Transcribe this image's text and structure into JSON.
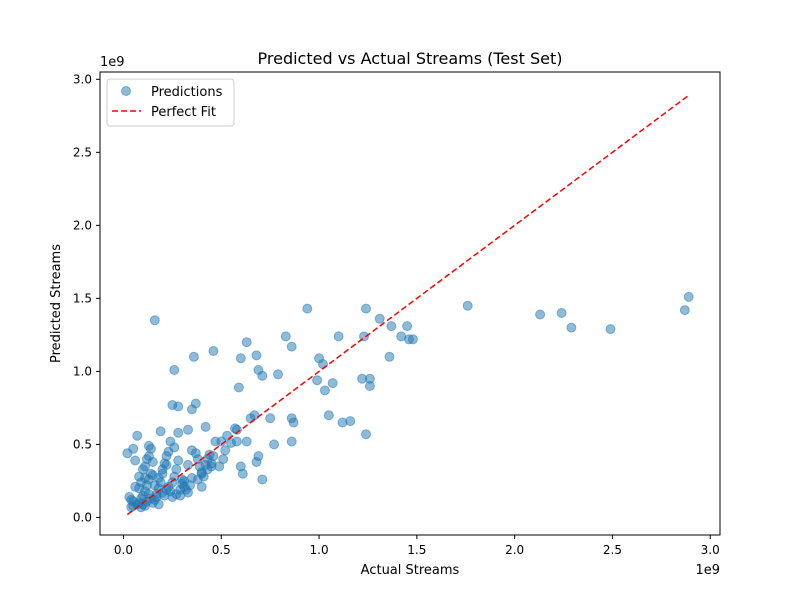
{
  "chart_data": {
    "type": "scatter",
    "title": "Predicted vs Actual Streams (Test Set)",
    "xlabel": "Actual Streams",
    "ylabel": "Predicted Streams",
    "x_offset_label": "1e9",
    "y_offset_label": "1e9",
    "xlim": [
      -0.12,
      3.05
    ],
    "ylim": [
      -0.12,
      3.05
    ],
    "xticks": [
      0.0,
      0.5,
      1.0,
      1.5,
      2.0,
      2.5,
      3.0
    ],
    "xtick_labels": [
      "0.0",
      "0.5",
      "1.0",
      "1.5",
      "2.0",
      "2.5",
      "3.0"
    ],
    "yticks": [
      0.0,
      0.5,
      1.0,
      1.5,
      2.0,
      2.5,
      3.0
    ],
    "ytick_labels": [
      "0.0",
      "0.5",
      "1.0",
      "1.5",
      "2.0",
      "2.5",
      "3.0"
    ],
    "grid": false,
    "legend_position": "top-left",
    "series": [
      {
        "name": "Predictions",
        "kind": "scatter",
        "color": "#1f77b4",
        "points": [
          [
            0.02,
            0.44
          ],
          [
            0.03,
            0.14
          ],
          [
            0.05,
            0.47
          ],
          [
            0.06,
            0.39
          ],
          [
            0.07,
            0.56
          ],
          [
            0.06,
            0.21
          ],
          [
            0.04,
            0.12
          ],
          [
            0.05,
            0.08
          ],
          [
            0.08,
            0.1
          ],
          [
            0.09,
            0.13
          ],
          [
            0.1,
            0.15
          ],
          [
            0.11,
            0.18
          ],
          [
            0.12,
            0.22
          ],
          [
            0.13,
            0.26
          ],
          [
            0.14,
            0.3
          ],
          [
            0.08,
            0.28
          ],
          [
            0.09,
            0.24
          ],
          [
            0.1,
            0.33
          ],
          [
            0.11,
            0.35
          ],
          [
            0.12,
            0.4
          ],
          [
            0.13,
            0.42
          ],
          [
            0.13,
            0.49
          ],
          [
            0.14,
            0.47
          ],
          [
            0.15,
            0.38
          ],
          [
            0.16,
            0.12
          ],
          [
            0.17,
            0.16
          ],
          [
            0.18,
            0.2
          ],
          [
            0.19,
            0.24
          ],
          [
            0.2,
            0.3
          ],
          [
            0.21,
            0.37
          ],
          [
            0.22,
            0.42
          ],
          [
            0.23,
            0.45
          ],
          [
            0.19,
            0.59
          ],
          [
            0.21,
            0.15
          ],
          [
            0.24,
            0.18
          ],
          [
            0.25,
            0.24
          ],
          [
            0.26,
            0.28
          ],
          [
            0.27,
            0.33
          ],
          [
            0.28,
            0.39
          ],
          [
            0.24,
            0.52
          ],
          [
            0.26,
            0.48
          ],
          [
            0.3,
            0.26
          ],
          [
            0.31,
            0.21
          ],
          [
            0.32,
            0.19
          ],
          [
            0.33,
            0.17
          ],
          [
            0.34,
            0.22
          ],
          [
            0.35,
            0.27
          ],
          [
            0.29,
            0.15
          ],
          [
            0.28,
            0.58
          ],
          [
            0.33,
            0.6
          ],
          [
            0.35,
            0.46
          ],
          [
            0.37,
            0.44
          ],
          [
            0.38,
            0.4
          ],
          [
            0.39,
            0.35
          ],
          [
            0.4,
            0.31
          ],
          [
            0.41,
            0.28
          ],
          [
            0.42,
            0.36
          ],
          [
            0.43,
            0.4
          ],
          [
            0.44,
            0.43
          ],
          [
            0.45,
            0.35
          ],
          [
            0.46,
            0.42
          ],
          [
            0.47,
            0.52
          ],
          [
            0.42,
            0.62
          ],
          [
            0.4,
            0.21
          ],
          [
            0.49,
            0.35
          ],
          [
            0.51,
            0.4
          ],
          [
            0.52,
            0.46
          ],
          [
            0.53,
            0.56
          ],
          [
            0.55,
            0.51
          ],
          [
            0.57,
            0.61
          ],
          [
            0.58,
            0.6
          ],
          [
            0.6,
            0.35
          ],
          [
            0.61,
            0.3
          ],
          [
            0.63,
            0.52
          ],
          [
            0.65,
            0.68
          ],
          [
            0.67,
            0.7
          ],
          [
            0.68,
            0.38
          ],
          [
            0.69,
            0.42
          ],
          [
            0.71,
            0.26
          ],
          [
            0.75,
            0.68
          ],
          [
            0.77,
            0.5
          ],
          [
            0.86,
            0.52
          ],
          [
            0.86,
            0.68
          ],
          [
            0.87,
            0.65
          ],
          [
            0.79,
            0.98
          ],
          [
            0.83,
            1.24
          ],
          [
            0.86,
            1.17
          ],
          [
            0.94,
            1.43
          ],
          [
            0.99,
            0.94
          ],
          [
            1.0,
            1.09
          ],
          [
            1.02,
            1.05
          ],
          [
            1.03,
            0.87
          ],
          [
            1.05,
            0.7
          ],
          [
            1.07,
            0.92
          ],
          [
            1.1,
            1.24
          ],
          [
            1.12,
            0.65
          ],
          [
            1.16,
            0.66
          ],
          [
            1.22,
            0.95
          ],
          [
            1.24,
            0.57
          ],
          [
            1.24,
            1.43
          ],
          [
            1.26,
            0.95
          ],
          [
            1.26,
            0.9
          ],
          [
            1.31,
            1.36
          ],
          [
            1.36,
            1.1
          ],
          [
            1.37,
            1.31
          ],
          [
            1.42,
            1.24
          ],
          [
            1.45,
            1.31
          ],
          [
            1.46,
            1.22
          ],
          [
            1.48,
            1.22
          ],
          [
            1.23,
            1.24
          ],
          [
            0.16,
            1.35
          ],
          [
            0.25,
            0.77
          ],
          [
            0.28,
            0.76
          ],
          [
            0.35,
            0.74
          ],
          [
            0.37,
            0.78
          ],
          [
            0.26,
            1.01
          ],
          [
            0.36,
            1.1
          ],
          [
            0.46,
            1.14
          ],
          [
            0.59,
            0.89
          ],
          [
            0.6,
            1.09
          ],
          [
            0.63,
            1.2
          ],
          [
            0.68,
            1.11
          ],
          [
            0.69,
            1.01
          ],
          [
            0.71,
            0.97
          ],
          [
            1.76,
            1.45
          ],
          [
            2.13,
            1.39
          ],
          [
            2.24,
            1.4
          ],
          [
            2.29,
            1.3
          ],
          [
            2.49,
            1.29
          ],
          [
            2.87,
            1.42
          ],
          [
            2.89,
            1.51
          ],
          [
            0.1,
            0.09
          ],
          [
            0.12,
            0.11
          ],
          [
            0.14,
            0.13
          ],
          [
            0.15,
            0.1
          ],
          [
            0.17,
            0.14
          ],
          [
            0.18,
            0.09
          ],
          [
            0.2,
            0.17
          ],
          [
            0.22,
            0.19
          ],
          [
            0.23,
            0.21
          ],
          [
            0.25,
            0.14
          ],
          [
            0.27,
            0.16
          ],
          [
            0.29,
            0.19
          ],
          [
            0.3,
            0.23
          ],
          [
            0.31,
            0.25
          ],
          [
            0.07,
            0.09
          ],
          [
            0.05,
            0.11
          ],
          [
            0.04,
            0.07
          ],
          [
            0.09,
            0.07
          ],
          [
            0.11,
            0.08
          ],
          [
            0.13,
            0.16
          ],
          [
            0.16,
            0.22
          ],
          [
            0.18,
            0.27
          ],
          [
            0.2,
            0.33
          ],
          [
            0.22,
            0.36
          ],
          [
            0.38,
            0.26
          ],
          [
            0.4,
            0.3
          ],
          [
            0.45,
            0.37
          ],
          [
            0.43,
            0.33
          ],
          [
            0.5,
            0.52
          ],
          [
            0.58,
            0.52
          ],
          [
            0.33,
            0.36
          ],
          [
            0.15,
            0.29
          ],
          [
            0.11,
            0.27
          ],
          [
            0.08,
            0.2
          ]
        ]
      },
      {
        "name": "Perfect Fit",
        "kind": "line",
        "color": "#ff0000",
        "linestyle": "dashed",
        "points": [
          [
            0.02,
            0.02
          ],
          [
            2.89,
            2.89
          ]
        ]
      }
    ]
  }
}
